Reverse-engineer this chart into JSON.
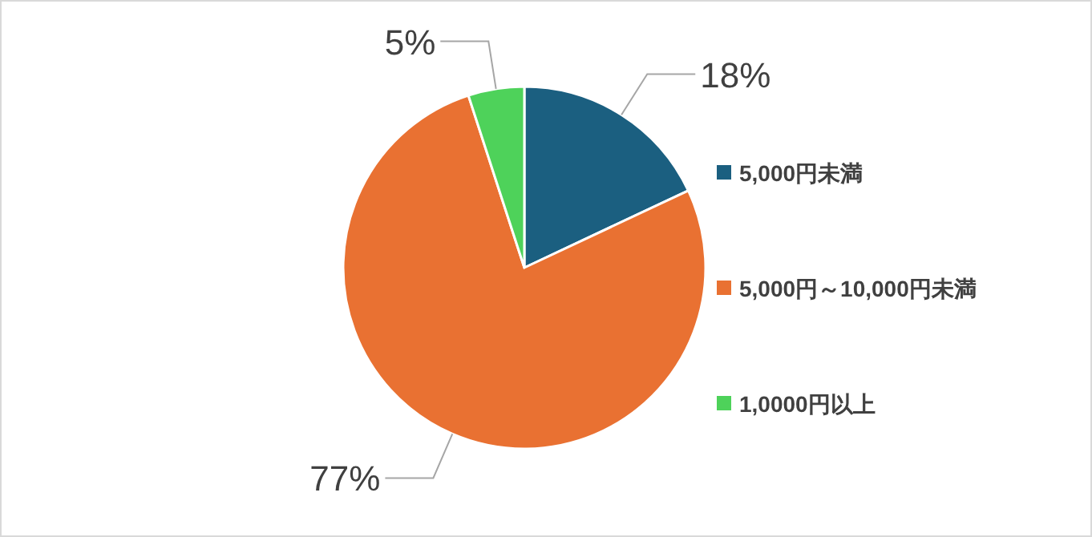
{
  "chart_data": {
    "type": "pie",
    "categories": [
      "5,000円未満",
      "5,000円～10,000円未満",
      "1,0000円以上"
    ],
    "values": [
      18,
      77,
      5
    ],
    "colors": [
      "#1b5f80",
      "#e97132",
      "#4ed25a"
    ],
    "value_labels": [
      "18%",
      "77%",
      "5%"
    ],
    "legend": "right"
  }
}
